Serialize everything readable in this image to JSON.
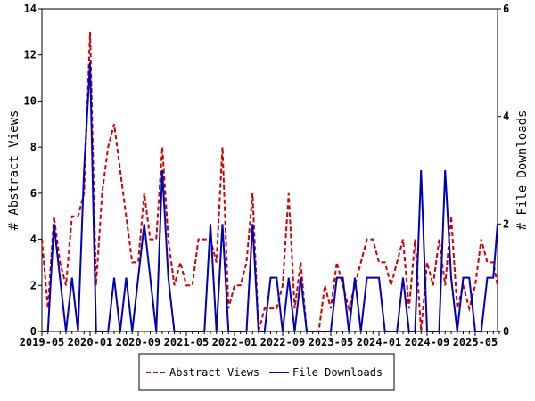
{
  "chart_data": {
    "type": "line",
    "xlabel": "",
    "ylabel_left": "# Abstract Views",
    "ylabel_right": "# File Downloads",
    "ylim_left": [
      0,
      14
    ],
    "ylim_right": [
      0,
      6
    ],
    "yticks_left": [
      "0",
      "2",
      "4",
      "6",
      "8",
      "10",
      "12",
      "14"
    ],
    "yticks_right": [
      "0",
      "2",
      "4",
      "6"
    ],
    "start_month": "2019-05",
    "xtick_labels": [
      "2019-05",
      "2020-01",
      "2020-09",
      "2021-05",
      "2022-01",
      "2022-09",
      "2023-05",
      "2024-01",
      "2024-09",
      "2025-05"
    ],
    "legend_position": "bottom-center",
    "series": [
      {
        "name": "Abstract Views",
        "axis": "left",
        "color": "#cc0000",
        "style": "dashed",
        "values": [
          4,
          1,
          5,
          3,
          2,
          5,
          5,
          6,
          13,
          2,
          6,
          8,
          9,
          7,
          5,
          3,
          3,
          6,
          4,
          4,
          8,
          4,
          2,
          3,
          2,
          2,
          4,
          4,
          4,
          3,
          8,
          1,
          2,
          2,
          3,
          6,
          0,
          1,
          1,
          1,
          2,
          6,
          1,
          3,
          0,
          0,
          0,
          2,
          1,
          3,
          2,
          1,
          2,
          3,
          4,
          4,
          3,
          3,
          2,
          3,
          4,
          1,
          4,
          0,
          3,
          2,
          4,
          2,
          5,
          1,
          2,
          1,
          2,
          4,
          3,
          3,
          2
        ]
      },
      {
        "name": "File Downloads",
        "axis": "right",
        "color": "#0000bb",
        "style": "solid",
        "values": [
          0,
          0,
          2,
          1,
          0,
          1,
          0,
          3,
          5,
          0,
          0,
          0,
          1,
          0,
          1,
          0,
          1,
          2,
          1,
          0,
          3,
          1,
          0,
          0,
          0,
          0,
          0,
          0,
          2,
          0,
          2,
          0,
          0,
          0,
          0,
          2,
          0,
          0,
          1,
          1,
          0,
          1,
          0,
          1,
          0,
          0,
          0,
          0,
          0,
          1,
          1,
          0,
          1,
          0,
          1,
          1,
          1,
          0,
          0,
          0,
          1,
          0,
          0,
          3,
          0,
          0,
          0,
          3,
          1,
          0,
          1,
          1,
          0,
          0,
          1,
          1,
          2
        ]
      }
    ]
  }
}
